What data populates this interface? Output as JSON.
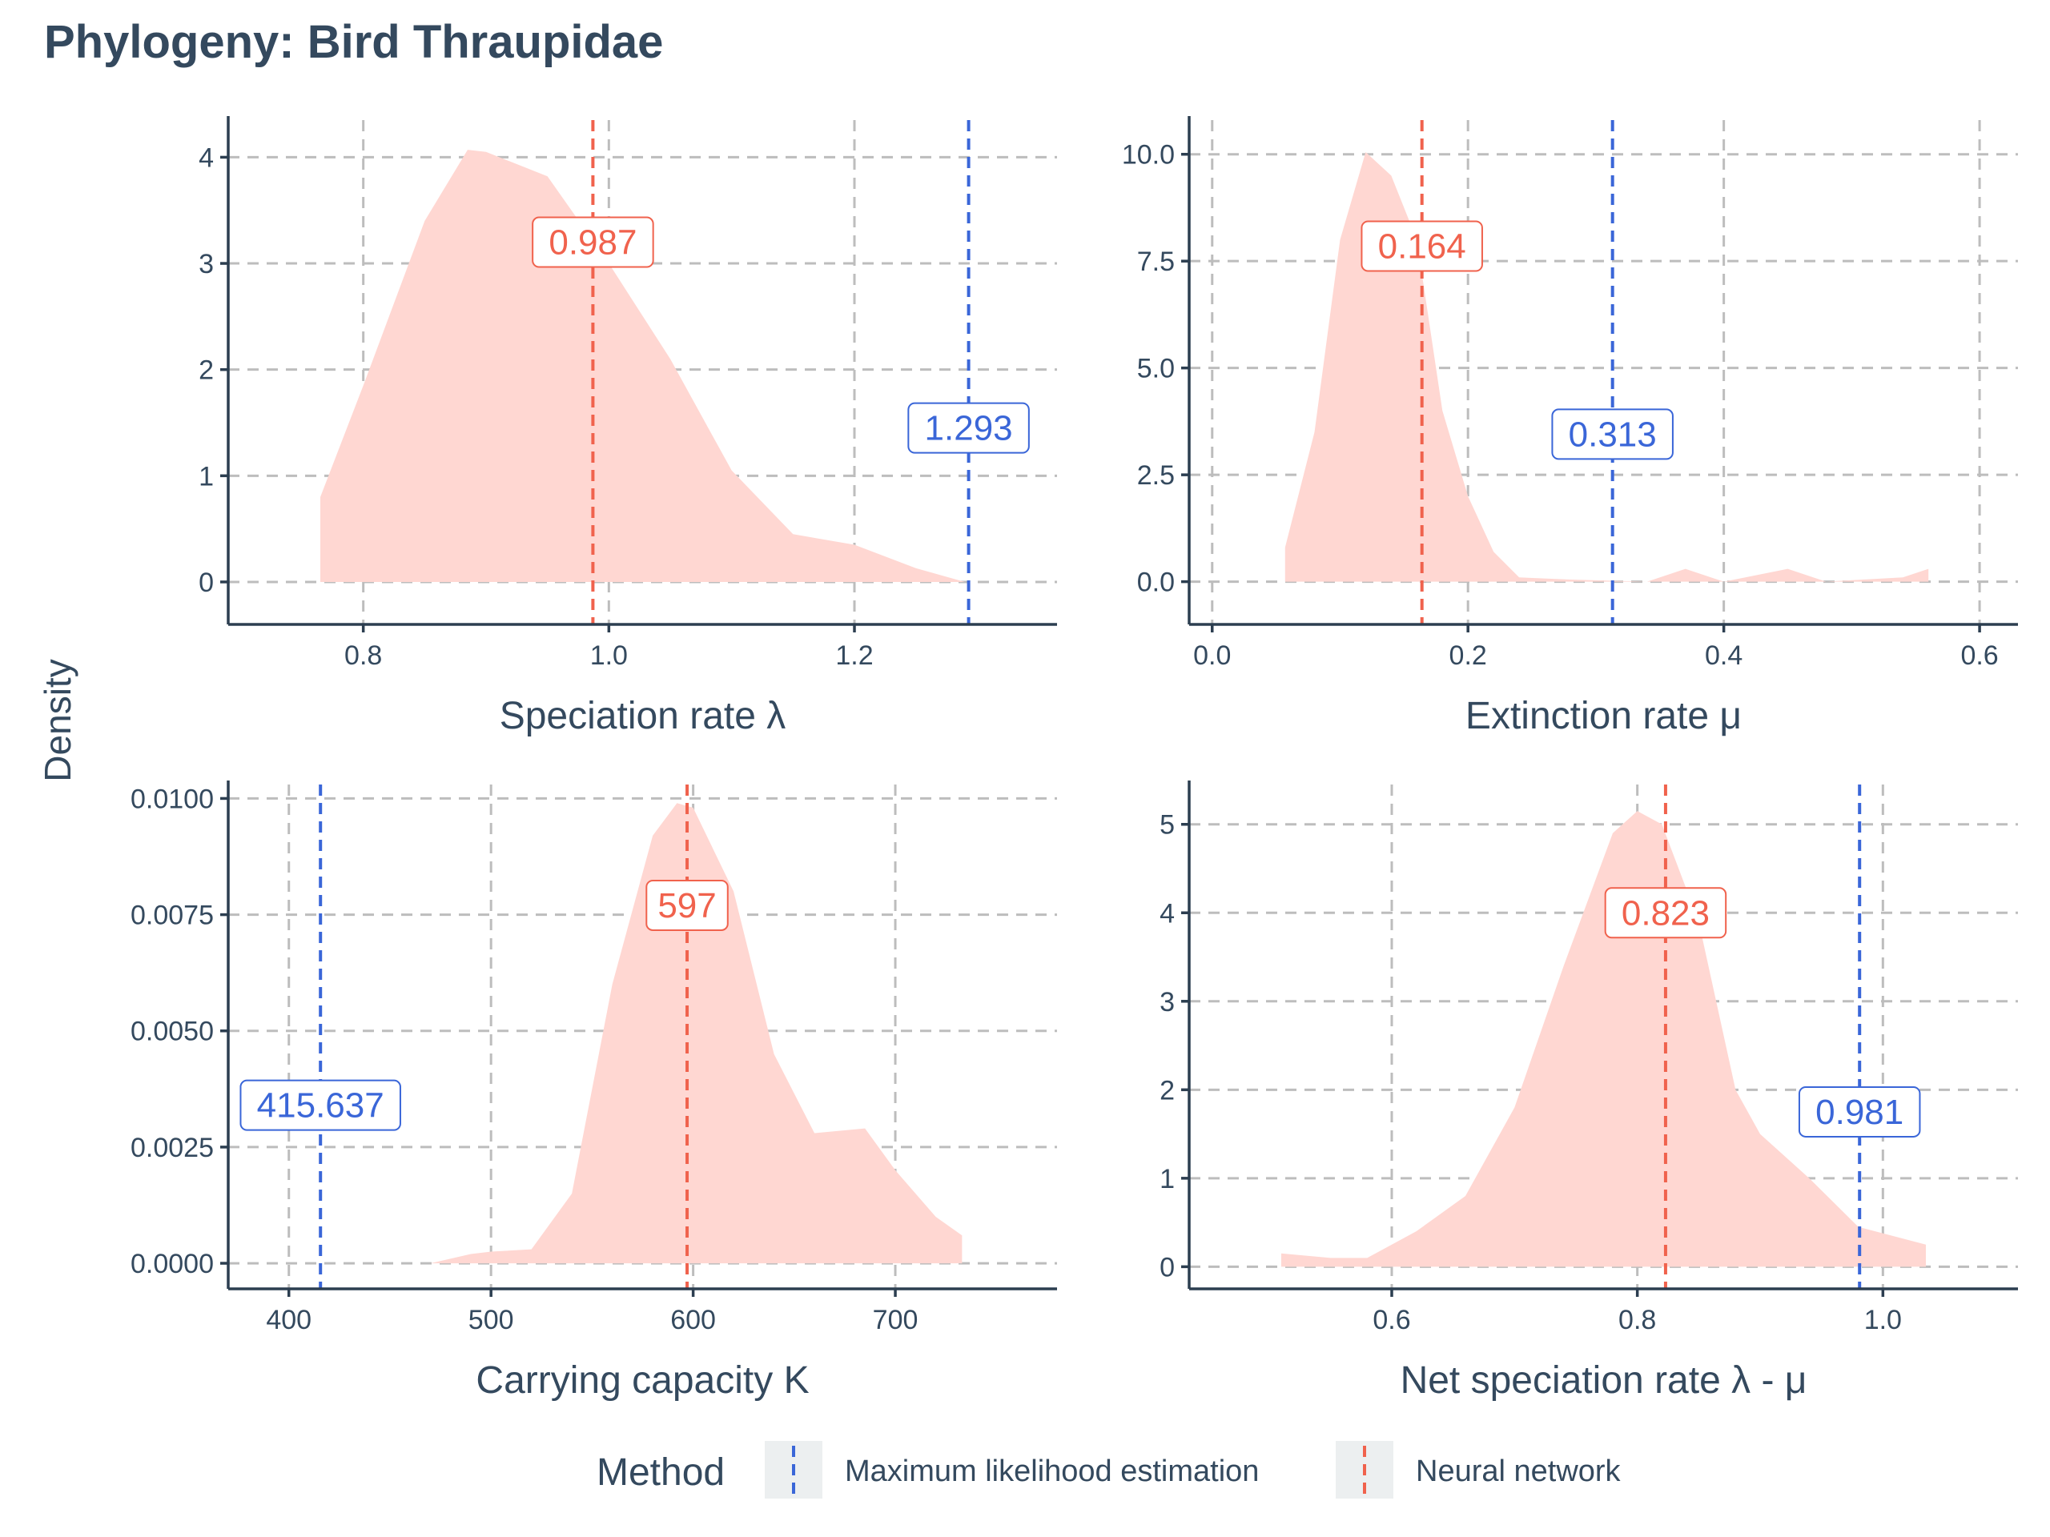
{
  "title": "Phylogeny: Bird Thraupidae",
  "shared_ylabel": "Density",
  "legend": {
    "title": "Method",
    "items": [
      {
        "label": "Maximum likelihood estimation",
        "color": "#3a66d8"
      },
      {
        "label": "Neural network",
        "color": "#f0624d"
      }
    ]
  },
  "colors": {
    "nn": "#f0624d",
    "mle": "#3a66d8",
    "fill": "#ffd7d2"
  },
  "chart_data": [
    {
      "type": "area",
      "xlabel": "Speciation rate λ",
      "xlim": [
        0.69,
        1.365
      ],
      "ylim": [
        -0.4,
        4.35
      ],
      "xticks": [
        0.8,
        1.0,
        1.2
      ],
      "xtick_labels": [
        "0.8",
        "1.0",
        "1.2"
      ],
      "yticks": [
        0,
        1,
        2,
        3,
        4
      ],
      "ytick_labels": [
        "0",
        "1",
        "2",
        "3",
        "4"
      ],
      "density": [
        [
          0.765,
          0
        ],
        [
          0.765,
          0.8
        ],
        [
          0.8,
          1.85
        ],
        [
          0.85,
          3.4
        ],
        [
          0.885,
          4.07
        ],
        [
          0.9,
          4.05
        ],
        [
          0.95,
          3.82
        ],
        [
          1.0,
          3.0
        ],
        [
          1.05,
          2.1
        ],
        [
          1.1,
          1.05
        ],
        [
          1.15,
          0.45
        ],
        [
          1.2,
          0.35
        ],
        [
          1.25,
          0.13
        ],
        [
          1.29,
          0.0
        ]
      ],
      "nn_value": 0.987,
      "nn_label": "0.987",
      "nn_label_y": 3.2,
      "mle_value": 1.293,
      "mle_label": "1.293",
      "mle_label_y": 1.45
    },
    {
      "type": "area",
      "xlabel": "Extinction rate μ",
      "xlim": [
        -0.018,
        0.63
      ],
      "ylim": [
        -1.0,
        10.8
      ],
      "xticks": [
        0.0,
        0.2,
        0.4,
        0.6
      ],
      "xtick_labels": [
        "0.0",
        "0.2",
        "0.4",
        "0.6"
      ],
      "yticks": [
        0.0,
        2.5,
        5.0,
        7.5,
        10.0
      ],
      "ytick_labels": [
        "0.0",
        "2.5",
        "5.0",
        "7.5",
        "10.0"
      ],
      "density": [
        [
          0.057,
          0
        ],
        [
          0.057,
          0.8
        ],
        [
          0.08,
          3.5
        ],
        [
          0.1,
          8.0
        ],
        [
          0.12,
          10.05
        ],
        [
          0.14,
          9.5
        ],
        [
          0.16,
          8.0
        ],
        [
          0.18,
          4.0
        ],
        [
          0.2,
          2.0
        ],
        [
          0.22,
          0.7
        ],
        [
          0.24,
          0.1
        ],
        [
          0.28,
          0.05
        ],
        [
          0.34,
          0.0
        ],
        [
          0.37,
          0.3
        ],
        [
          0.4,
          0.0
        ],
        [
          0.45,
          0.3
        ],
        [
          0.48,
          0.0
        ],
        [
          0.54,
          0.1
        ],
        [
          0.56,
          0.3
        ],
        [
          0.56,
          0
        ]
      ],
      "nn_value": 0.164,
      "nn_label": "0.164",
      "nn_label_y": 7.85,
      "mle_value": 0.313,
      "mle_label": "0.313",
      "mle_label_y": 3.45
    },
    {
      "type": "area",
      "xlabel": "Carrying capacity K",
      "xlim": [
        370,
        780
      ],
      "ylim": [
        -0.00055,
        0.0103
      ],
      "xticks": [
        400,
        500,
        600,
        700
      ],
      "xtick_labels": [
        "400",
        "500",
        "600",
        "700"
      ],
      "yticks": [
        0,
        0.0025,
        0.005,
        0.0075,
        0.01
      ],
      "ytick_labels": [
        "0.0000",
        "0.0025",
        "0.0050",
        "0.0075",
        "0.0100"
      ],
      "density": [
        [
          470,
          0
        ],
        [
          490,
          0.0002
        ],
        [
          500,
          0.00025
        ],
        [
          520,
          0.0003
        ],
        [
          540,
          0.0015
        ],
        [
          560,
          0.006
        ],
        [
          580,
          0.0092
        ],
        [
          592,
          0.0099
        ],
        [
          600,
          0.0098
        ],
        [
          620,
          0.008
        ],
        [
          640,
          0.0045
        ],
        [
          660,
          0.0028
        ],
        [
          685,
          0.0029
        ],
        [
          700,
          0.002
        ],
        [
          720,
          0.001
        ],
        [
          733,
          0.0006
        ],
        [
          733,
          0
        ]
      ],
      "nn_value": 597,
      "nn_label": "597",
      "nn_label_y": 0.0077,
      "mle_value": 415.637,
      "mle_label": "415.637",
      "mle_label_y": 0.0034
    },
    {
      "type": "area",
      "xlabel": "Net speciation rate λ - μ",
      "xlim": [
        0.435,
        1.11
      ],
      "ylim": [
        -0.25,
        5.45
      ],
      "xticks": [
        0.6,
        0.8,
        1.0
      ],
      "xtick_labels": [
        "0.6",
        "0.8",
        "1.0"
      ],
      "yticks": [
        0,
        1,
        2,
        3,
        4,
        5
      ],
      "ytick_labels": [
        "0",
        "1",
        "2",
        "3",
        "4",
        "5"
      ],
      "density": [
        [
          0.51,
          0
        ],
        [
          0.51,
          0.15
        ],
        [
          0.55,
          0.1
        ],
        [
          0.58,
          0.1
        ],
        [
          0.62,
          0.4
        ],
        [
          0.66,
          0.8
        ],
        [
          0.7,
          1.8
        ],
        [
          0.74,
          3.4
        ],
        [
          0.78,
          4.9
        ],
        [
          0.8,
          5.15
        ],
        [
          0.82,
          5.0
        ],
        [
          0.85,
          3.9
        ],
        [
          0.88,
          2.0
        ],
        [
          0.9,
          1.5
        ],
        [
          0.94,
          1.0
        ],
        [
          0.98,
          0.45
        ],
        [
          1.035,
          0.25
        ],
        [
          1.035,
          0
        ]
      ],
      "nn_value": 0.823,
      "nn_label": "0.823",
      "nn_label_y": 4.0,
      "mle_value": 0.981,
      "mle_label": "0.981",
      "mle_label_y": 1.75
    }
  ]
}
